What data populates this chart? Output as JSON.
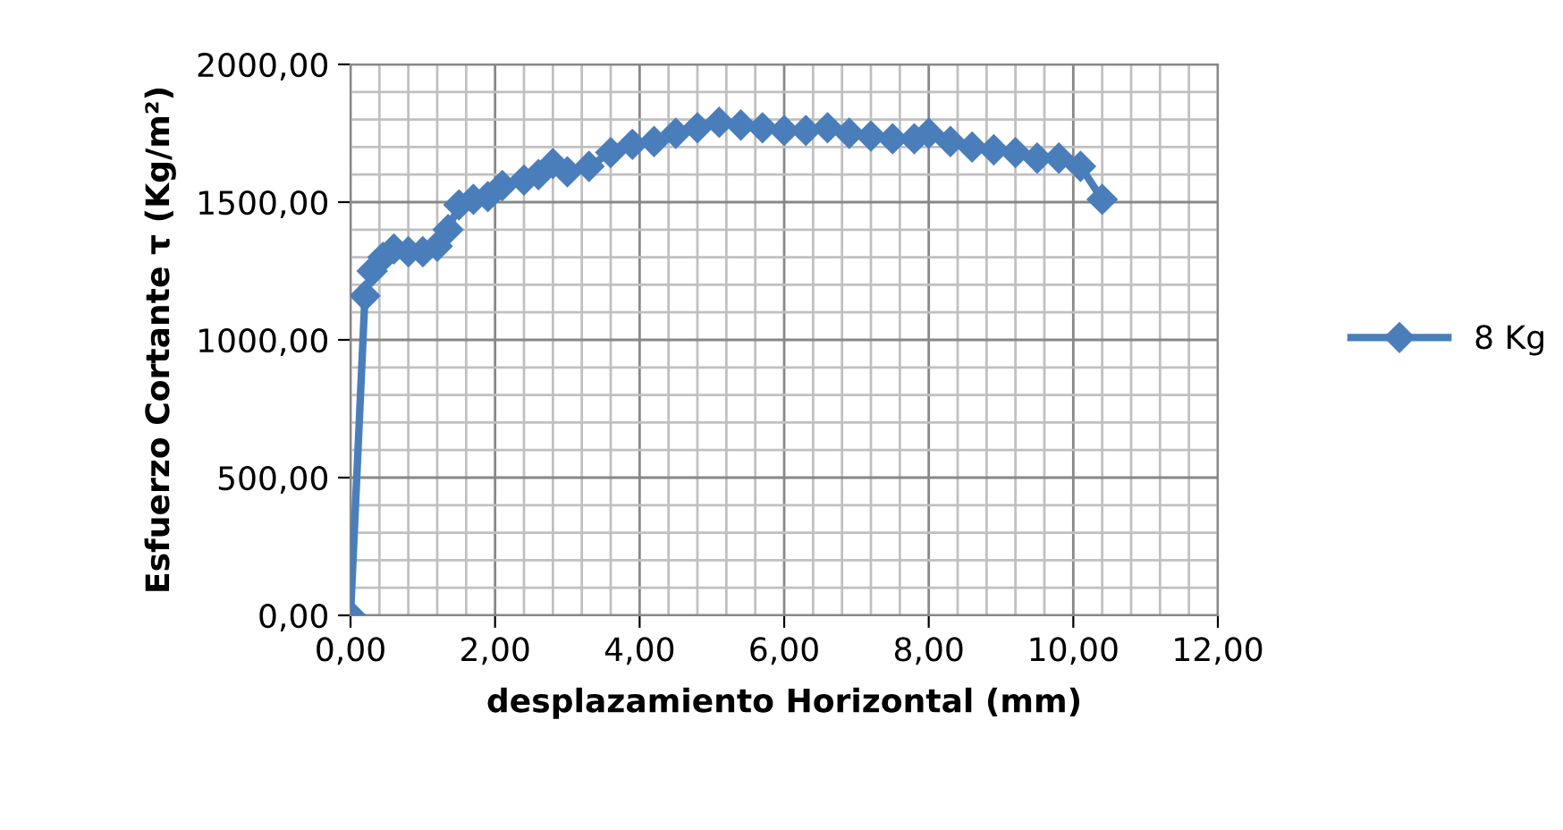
{
  "chart_data": {
    "type": "line",
    "xlabel": "desplazamiento Horizontal (mm)",
    "ylabel": "Esfuerzo Cortante τ (Kg/m²)",
    "x": [
      0,
      0.2,
      0.3,
      0.45,
      0.6,
      0.8,
      1.0,
      1.2,
      1.35,
      1.5,
      1.7,
      1.9,
      2.1,
      2.4,
      2.6,
      2.8,
      3.0,
      3.3,
      3.6,
      3.9,
      4.2,
      4.5,
      4.8,
      5.1,
      5.4,
      5.7,
      6.0,
      6.3,
      6.6,
      6.9,
      7.2,
      7.5,
      7.8,
      8.0,
      8.3,
      8.6,
      8.9,
      9.2,
      9.5,
      9.8,
      10.1,
      10.4
    ],
    "series": [
      {
        "name": "8 Kg",
        "color": "#4a7ebb",
        "values": [
          0,
          1160,
          1250,
          1300,
          1330,
          1320,
          1320,
          1340,
          1400,
          1490,
          1510,
          1520,
          1560,
          1580,
          1600,
          1640,
          1610,
          1630,
          1680,
          1710,
          1720,
          1750,
          1770,
          1790,
          1780,
          1770,
          1760,
          1760,
          1770,
          1750,
          1740,
          1730,
          1730,
          1750,
          1720,
          1700,
          1690,
          1680,
          1660,
          1660,
          1630,
          1510
        ]
      }
    ],
    "xlim": [
      0,
      12
    ],
    "ylim": [
      0,
      2000
    ],
    "xticks": [
      {
        "value": 0,
        "label": "0,00"
      },
      {
        "value": 2,
        "label": "2,00"
      },
      {
        "value": 4,
        "label": "4,00"
      },
      {
        "value": 6,
        "label": "6,00"
      },
      {
        "value": 8,
        "label": "8,00"
      },
      {
        "value": 10,
        "label": "10,00"
      },
      {
        "value": 12,
        "label": "12,00"
      }
    ],
    "yticks": [
      {
        "value": 0,
        "label": "0,00"
      },
      {
        "value": 500,
        "label": "500,00"
      },
      {
        "value": 1000,
        "label": "1000,00"
      },
      {
        "value": 1500,
        "label": "1500,00"
      },
      {
        "value": 2000,
        "label": "2000,00"
      }
    ],
    "grid": true,
    "legend": "right",
    "marker": "diamond",
    "line_style": "solid"
  }
}
